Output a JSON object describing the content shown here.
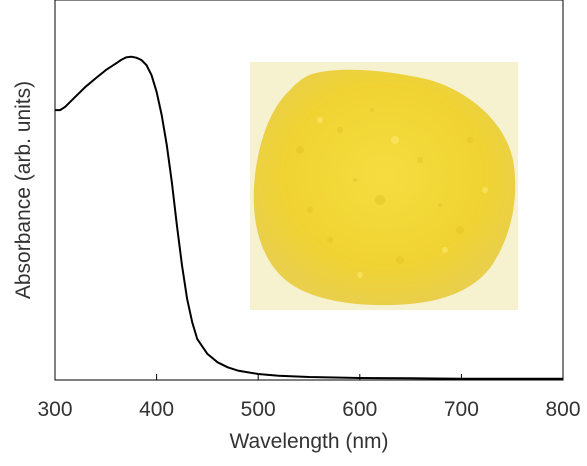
{
  "chart_data": {
    "type": "line",
    "xlabel": "Wavelength (nm)",
    "ylabel": "Absorbance (arb. units)",
    "xlim": [
      300,
      800
    ],
    "ylim": [
      0,
      1
    ],
    "x_ticks": [
      "300",
      "400",
      "500",
      "600",
      "700",
      "800"
    ],
    "y_ticks_labeled": false,
    "grid": false,
    "legend": "none",
    "series": [
      {
        "color": "#000000",
        "x": [
          300,
          305,
          310,
          320,
          330,
          340,
          350,
          360,
          365,
          370,
          375,
          380,
          385,
          390,
          395,
          400,
          405,
          410,
          415,
          420,
          425,
          430,
          435,
          440,
          450,
          460,
          470,
          480,
          500,
          520,
          550,
          600,
          650,
          700,
          750,
          800
        ],
        "y": [
          0.805,
          0.805,
          0.815,
          0.845,
          0.875,
          0.9,
          0.925,
          0.945,
          0.955,
          0.963,
          0.965,
          0.962,
          0.955,
          0.94,
          0.91,
          0.86,
          0.79,
          0.7,
          0.59,
          0.46,
          0.34,
          0.24,
          0.17,
          0.12,
          0.075,
          0.05,
          0.035,
          0.025,
          0.015,
          0.01,
          0.006,
          0.003,
          0.002,
          0.001,
          0.001,
          0.001
        ]
      }
    ],
    "inset": {
      "content": "photograph of yellow powder",
      "background_color": "#f6f1cf",
      "powder_color": "#f2d63a"
    }
  }
}
